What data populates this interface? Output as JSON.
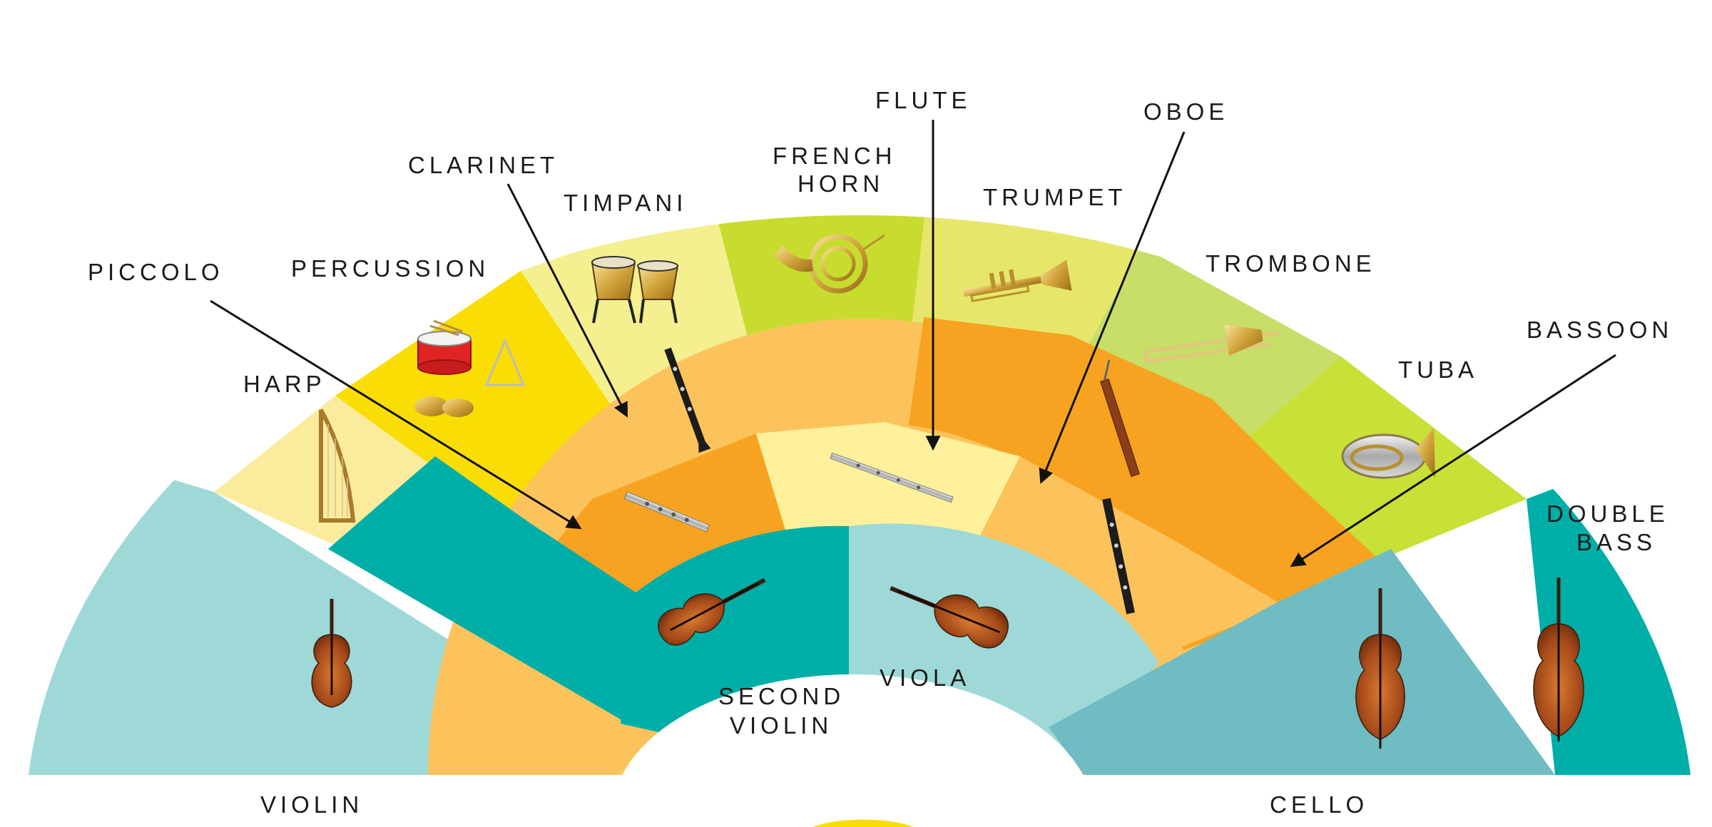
{
  "title": "",
  "colors": {
    "violin": "#9ed9d8",
    "second_violin": "#00aea8",
    "viola": "#9ed9d8",
    "cello": "#6fbcc2",
    "double_bass": "#00aea8",
    "harp": "#fbeb9d",
    "percussion": "#f9dd04",
    "timpani": "#f4ef8f",
    "french_horn": "#c7dc2f",
    "trumpet": "#e6e76a",
    "trombone": "#c7de68",
    "tuba": "#c9e037",
    "clarinet": "#fcc35c",
    "bassoon": "#f7a321",
    "piccolo": "#f7a321",
    "flute": "#fff09c",
    "oboe": "#fcc35c"
  },
  "sections": {
    "strings": [
      {
        "label": "VIOLIN",
        "icon": "violin-icon"
      },
      {
        "label": "SECOND",
        "label2": "VIOLIN",
        "icon": "violin-icon"
      },
      {
        "label": "VIOLA",
        "icon": "viola-icon"
      },
      {
        "label": "CELLO",
        "icon": "cello-icon"
      },
      {
        "label": "DOUBLE",
        "label2": "BASS",
        "icon": "double-bass-icon"
      }
    ],
    "woodwinds": [
      {
        "label": "PICCOLO",
        "icon": "piccolo-icon"
      },
      {
        "label": "CLARINET",
        "icon": "clarinet-icon"
      },
      {
        "label": "FLUTE",
        "icon": "flute-icon"
      },
      {
        "label": "OBOE",
        "icon": "oboe-icon"
      },
      {
        "label": "BASSOON",
        "icon": "bassoon-icon"
      }
    ],
    "brass_percussion": [
      {
        "label": "HARP",
        "icon": "harp-icon"
      },
      {
        "label": "PERCUSSION",
        "icon": "drum-icon"
      },
      {
        "label": "TIMPANI",
        "icon": "timpani-icon"
      },
      {
        "label": "FRENCH",
        "label2": "HORN",
        "icon": "french-horn-icon"
      },
      {
        "label": "TRUMPET",
        "icon": "trumpet-icon"
      },
      {
        "label": "TROMBONE",
        "icon": "trombone-icon"
      },
      {
        "label": "TUBA",
        "icon": "tuba-icon"
      }
    ]
  }
}
